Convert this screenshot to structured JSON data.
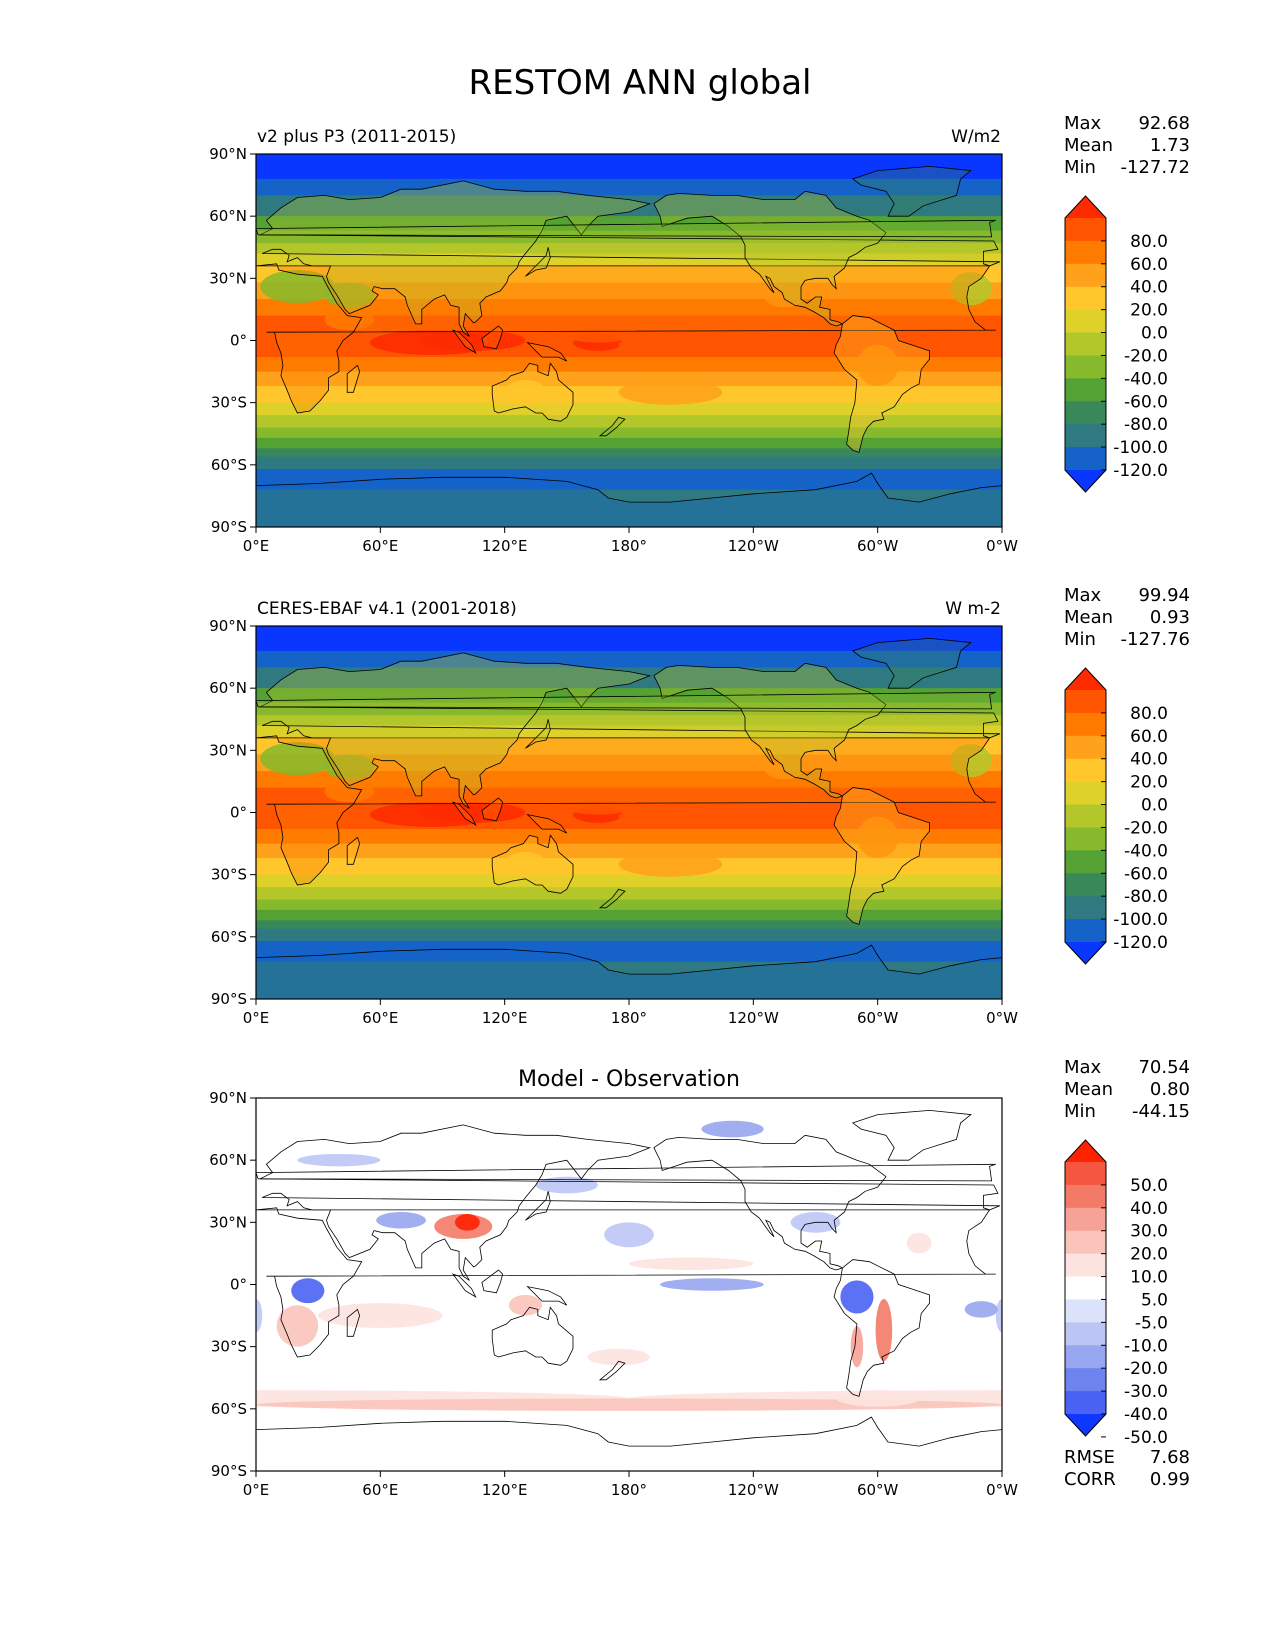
{
  "figure": {
    "title": "RESTOM ANN global"
  },
  "chart_data": [
    {
      "type": "heatmap",
      "title": "v2 plus P3 (2011-2015)",
      "units": "W/m2",
      "stats": {
        "max_label": "Max",
        "max": "92.68",
        "mean_label": "Mean",
        "mean": "1.73",
        "min_label": "Min",
        "min": "-127.72"
      },
      "colorbar": {
        "levels": [
          "80.0",
          "60.0",
          "40.0",
          "20.0",
          "0.0",
          "-20.0",
          "-40.0",
          "-60.0",
          "-80.0",
          "-100.0",
          "-120.0"
        ],
        "colors": [
          "#ff2a00",
          "#ff5500",
          "#ff7b00",
          "#ffa11a",
          "#ffc72c",
          "#ded22a",
          "#b4c72a",
          "#86b92c",
          "#55a234",
          "#39885a",
          "#2f7a80",
          "#1563c8",
          "#0a37ff"
        ],
        "extend": "both"
      },
      "xticks": [
        "0°E",
        "60°E",
        "120°E",
        "180°",
        "120°W",
        "60°W",
        "0°W"
      ],
      "yticks": [
        "90°N",
        "60°N",
        "30°N",
        "0°",
        "30°S",
        "60°S",
        "90°S"
      ],
      "xlim": [
        0,
        360
      ],
      "ylim": [
        -90,
        90
      ]
    },
    {
      "type": "heatmap",
      "title": "CERES-EBAF v4.1 (2001-2018)",
      "units": "W m-2",
      "stats": {
        "max_label": "Max",
        "max": "99.94",
        "mean_label": "Mean",
        "mean": "0.93",
        "min_label": "Min",
        "min": "-127.76"
      },
      "colorbar": {
        "levels": [
          "80.0",
          "60.0",
          "40.0",
          "20.0",
          "0.0",
          "-20.0",
          "-40.0",
          "-60.0",
          "-80.0",
          "-100.0",
          "-120.0"
        ],
        "colors": [
          "#ff2a00",
          "#ff5500",
          "#ff7b00",
          "#ffa11a",
          "#ffc72c",
          "#ded22a",
          "#b4c72a",
          "#86b92c",
          "#55a234",
          "#39885a",
          "#2f7a80",
          "#1563c8",
          "#0a37ff"
        ],
        "extend": "both"
      },
      "xticks": [
        "0°E",
        "60°E",
        "120°E",
        "180°",
        "120°W",
        "60°W",
        "0°W"
      ],
      "yticks": [
        "90°N",
        "60°N",
        "30°N",
        "0°",
        "30°S",
        "60°S",
        "90°S"
      ],
      "xlim": [
        0,
        360
      ],
      "ylim": [
        -90,
        90
      ]
    },
    {
      "type": "heatmap",
      "title": "Model - Observation",
      "units": "",
      "stats": {
        "max_label": "Max",
        "max": "70.54",
        "mean_label": "Mean",
        "mean": "0.80",
        "min_label": "Min",
        "min": "-44.15"
      },
      "metrics": {
        "rmse_label": "RMSE",
        "rmse": "7.68",
        "corr_label": "CORR",
        "corr": "0.99"
      },
      "colorbar": {
        "levels": [
          "50.0",
          "40.0",
          "30.0",
          "20.0",
          "10.0",
          "5.0",
          "-5.0",
          "-10.0",
          "-20.0",
          "-30.0",
          "-40.0",
          "-50.0"
        ],
        "colors": [
          "#ff2200",
          "#f5563f",
          "#f47a68",
          "#f7a296",
          "#fac4bb",
          "#fde3de",
          "#ffffff",
          "#dde2fb",
          "#bcc6f5",
          "#97a6f0",
          "#6d84ef",
          "#4a63f4",
          "#0f37ff"
        ],
        "extend": "both"
      },
      "xticks": [
        "0°E",
        "60°E",
        "120°E",
        "180°",
        "120°W",
        "60°W",
        "0°W"
      ],
      "yticks": [
        "90°N",
        "60°N",
        "30°N",
        "0°",
        "30°S",
        "60°S",
        "90°S"
      ],
      "xlim": [
        0,
        360
      ],
      "ylim": [
        -90,
        90
      ]
    }
  ]
}
